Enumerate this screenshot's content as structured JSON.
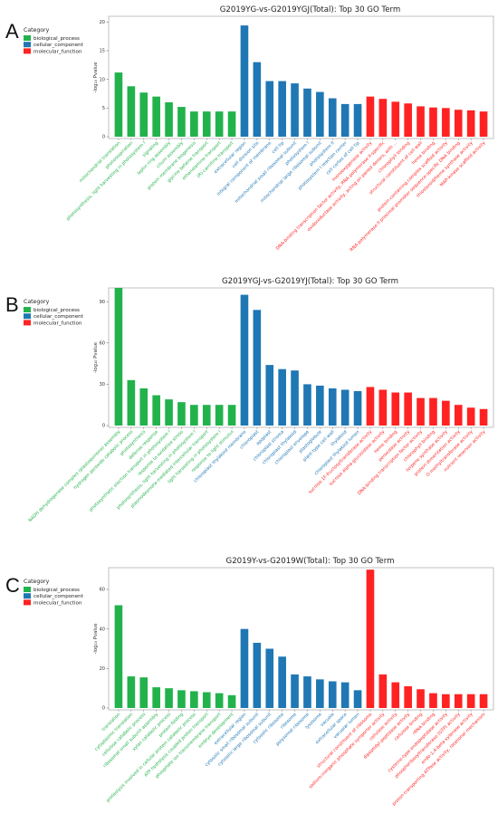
{
  "legend": {
    "title": "Category",
    "items": [
      {
        "label": "biological_process",
        "color": "#22b24c"
      },
      {
        "label": "cellular_component",
        "color": "#1f77b4"
      },
      {
        "label": "molecular_function",
        "color": "#ff2222"
      }
    ]
  },
  "ylabel": "-log₁₀ Pvalue",
  "chart_data": [
    {
      "letter": "A",
      "type": "bar",
      "title": "G2019YG-vs-G2019YGJ(Total): Top 30 GO Term",
      "ylabel": "-log₁₀ Pvalue",
      "ylim": [
        0,
        21
      ],
      "yticks": [
        0,
        5,
        10,
        15,
        20
      ],
      "categories": [
        "mitochondrial translation",
        "photorespiration",
        "photosynthesis, light harvesting in photosystem I",
        "signaling",
        "leptin ring assembly",
        "cilium assembly",
        "protein membrane biogenesis",
        "glycine betaine transport",
        "ethanolamine transport",
        "(R)-carnitine transport",
        "extracellular region",
        "cell division site",
        "integral component of membrane",
        "cell tip",
        "mitochondrial small ribosomal subunit",
        "photosystem I",
        "mitochondrial large ribosomal subunit",
        "photosystem II",
        "photosystem I reaction center",
        "cell cortex of cell tip",
        "monooxygenase activity",
        "DNA-binding transcription factor activity, RNA polymerase II-specific",
        "oxidoreductase activity, acting on paired donors, with ...",
        "chlorophyll binding",
        "structural constituent of cell wall",
        "heme binding",
        "protein-containing complex scaffold activity",
        "RNA polymerase II proximal promoter sequence-specific DNA binding",
        "thiosteroid/heme synthase activity",
        "MAP-kinase scaffold activity"
      ],
      "groups": [
        "bp",
        "bp",
        "bp",
        "bp",
        "bp",
        "bp",
        "bp",
        "bp",
        "bp",
        "bp",
        "cc",
        "cc",
        "cc",
        "cc",
        "cc",
        "cc",
        "cc",
        "cc",
        "cc",
        "cc",
        "mf",
        "mf",
        "mf",
        "mf",
        "mf",
        "mf",
        "mf",
        "mf",
        "mf",
        "mf"
      ],
      "values": [
        11.2,
        8.8,
        7.7,
        7.0,
        6.0,
        5.2,
        4.4,
        4.4,
        4.4,
        4.4,
        19.4,
        13.0,
        9.7,
        9.7,
        9.3,
        8.4,
        7.8,
        6.7,
        5.7,
        5.7,
        7.0,
        6.6,
        6.1,
        5.8,
        5.3,
        5.1,
        5.0,
        4.7,
        4.6,
        4.4
      ]
    },
    {
      "letter": "B",
      "type": "bar",
      "title": "G2019YGJ-vs-G2019YJ(Total): Top 30 GO Term",
      "ylabel": "-log₁₀ Pvalue",
      "ylim": [
        0,
        100
      ],
      "yticks": [
        0,
        30,
        60,
        90
      ],
      "categories": [
        "NADH dehydrogenase complex (plastoquinone) assembly",
        "hydrogen peroxide catabolic process",
        "photosynthesis",
        "defense response",
        "photosynthetic electron transport in photosystem I",
        "response to oxidative stress",
        "photosynthesis, light harvesting in photosystem I",
        "plasmodesmata-mediated intercellular transport",
        "light harvesting in photosystem I",
        "response to light stimulus",
        "chloroplast thylakoid membrane",
        "chloroplast",
        "apoplast",
        "chloroplast stroma",
        "chloroplast thylakoid",
        "chloroplast envelope",
        "plastoglobule",
        "plant-type cell wall",
        "thylakoid",
        "chloroplast thylakoid lumen",
        "sucrose 1F-fructosyltransferase activity",
        "sucrose alpha-glucosidase activity",
        "heme binding",
        "peroxidase activity",
        "DNA-binding transcription factor activity",
        "chlorophyll binding",
        "terpene synthase activity",
        "protein dimerization activity",
        "O-methyltransferase activity",
        "nutrient reservoir activity"
      ],
      "groups": [
        "bp",
        "bp",
        "bp",
        "bp",
        "bp",
        "bp",
        "bp",
        "bp",
        "bp",
        "bp",
        "cc",
        "cc",
        "cc",
        "cc",
        "cc",
        "cc",
        "cc",
        "cc",
        "cc",
        "cc",
        "mf",
        "mf",
        "mf",
        "mf",
        "mf",
        "mf",
        "mf",
        "mf",
        "mf",
        "mf"
      ],
      "values": [
        100,
        33,
        27,
        22,
        19,
        17,
        15,
        15,
        15,
        15,
        95,
        84,
        44,
        41,
        40,
        30,
        29,
        27,
        26,
        25,
        28,
        26,
        24,
        24,
        20,
        20,
        18,
        15,
        13,
        12
      ]
    },
    {
      "letter": "C",
      "type": "bar",
      "title": "G2019Y-vs-G2019W(Total): Top 30 GO Term",
      "ylabel": "-log₁₀ Pvalue",
      "ylim": [
        0,
        71
      ],
      "yticks": [
        0,
        20,
        40,
        60
      ],
      "categories": [
        "translation",
        "cytoplasmic translation",
        "cellulose catabolic process",
        "ribosomal small subunit assembly",
        "xylan catabolic process",
        "protein folding",
        "proteolysis involved in cellular protein catabolic process",
        "ATP hydrolysis coupled proton transport",
        "phosphate ion transmembrane transport",
        "embryo development",
        "extracellular region",
        "cytosolic small ribosomal subunit",
        "cytosolic large ribosomal subunit",
        "cytosolic ribosome",
        "ribosome",
        "polysomal ribosome",
        "lysosome",
        "vacuole",
        "extracellular space",
        "vacuolar lumen",
        "structural constituent of ribosome",
        "sodium:inorganic phosphate symporter activity",
        "cellulase activity",
        "dipeptidyl-peptidase activity",
        "cellulose binding",
        "rRNA binding",
        "cysteine-type endopeptidase activity",
        "phosphoribosyltransferase (GTP) activity",
        "endo-1,4-beta-xylanase activity",
        "proton-transporting ATPase activity, rotational mechanism"
      ],
      "groups": [
        "bp",
        "bp",
        "bp",
        "bp",
        "bp",
        "bp",
        "bp",
        "bp",
        "bp",
        "bp",
        "cc",
        "cc",
        "cc",
        "cc",
        "cc",
        "cc",
        "cc",
        "cc",
        "cc",
        "cc",
        "mf",
        "mf",
        "mf",
        "mf",
        "mf",
        "mf",
        "mf",
        "mf",
        "mf",
        "mf"
      ],
      "values": [
        52,
        16,
        15.5,
        10.5,
        10,
        9,
        8.5,
        8,
        7.5,
        6.5,
        40,
        33,
        30,
        26,
        17,
        16,
        14.5,
        13.5,
        13,
        9,
        70,
        17,
        13,
        11,
        9.5,
        7.5,
        7,
        7,
        7,
        7
      ]
    }
  ]
}
